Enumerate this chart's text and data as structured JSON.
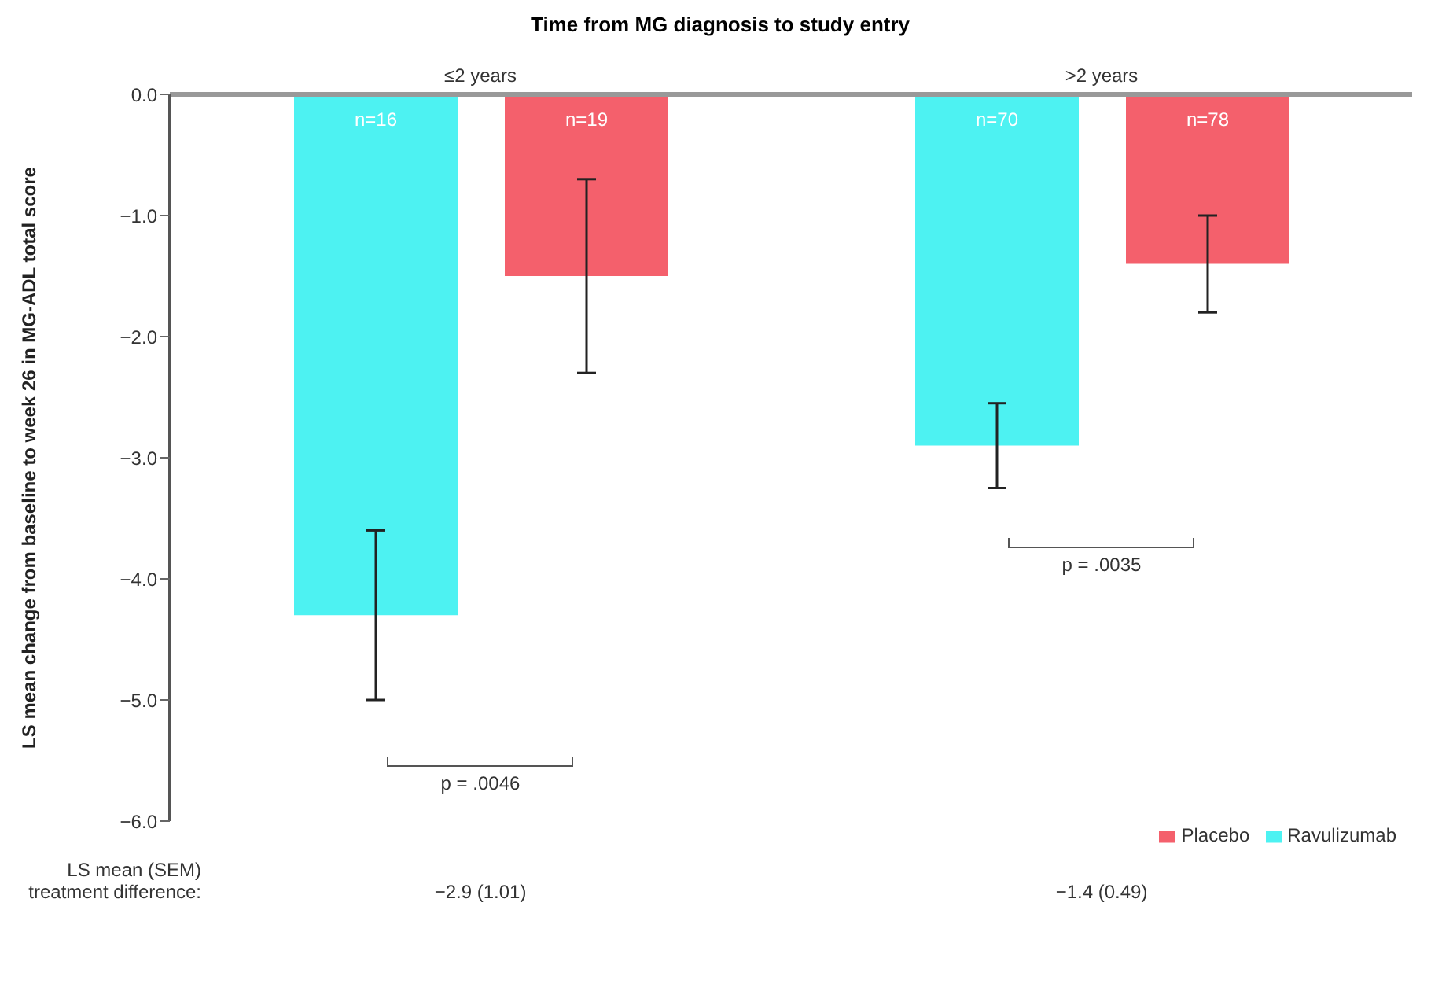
{
  "chart_data": {
    "type": "bar",
    "xlabel": "Time from MG diagnosis to study entry",
    "ylabel": "LS mean change from baseline to week 26 in MG-ADL total score",
    "categories": [
      "≤2 years",
      ">2 years"
    ],
    "series": [
      {
        "name": "Ravulizumab",
        "color": "#4df2f2",
        "values": [
          -4.3,
          -2.9
        ],
        "errors": [
          0.7,
          0.35
        ]
      },
      {
        "name": "Placebo",
        "color": "#f4606c",
        "values": [
          -1.5,
          -1.4
        ],
        "errors": [
          0.8,
          0.4
        ]
      }
    ],
    "ylim": [
      -6,
      0
    ],
    "yticks": [
      {
        "value": 0,
        "label": "0.0"
      },
      {
        "value": -1,
        "label": "−1.0"
      },
      {
        "value": -2,
        "label": "−2.0"
      },
      {
        "value": -3,
        "label": "−3.0"
      },
      {
        "value": -4,
        "label": "−4.0"
      },
      {
        "value": -5,
        "label": "−5.0"
      },
      {
        "value": -6,
        "label": "−6.0"
      }
    ],
    "grid": false,
    "legend": "bottom right",
    "annotations": [
      "n=16",
      "n=19",
      "n=70",
      "n=78",
      "p = .0046",
      "p = .0035",
      "LS mean (SEM) treatment difference:",
      "−2.9 (1.01)",
      "−1.4 (0.49)"
    ]
  }
}
